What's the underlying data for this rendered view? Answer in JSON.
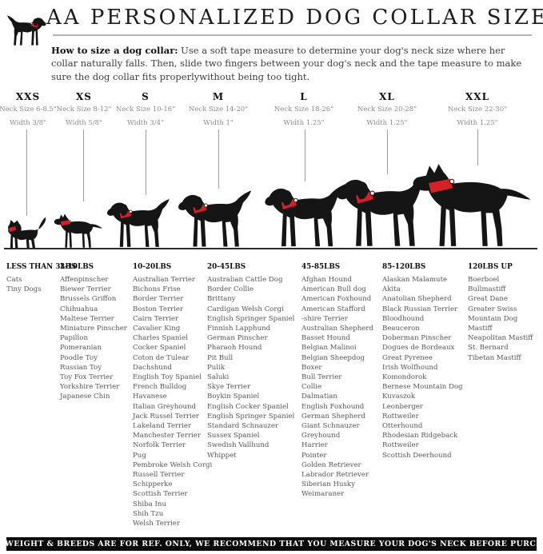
{
  "header": {
    "title": "AA PERSONALIZED DOG COLLAR SIZE GUIDE"
  },
  "intro": {
    "lead": "How to size a dog collar:",
    "body": "Use a soft tape measure to determine your dog's neck size where her collar naturally falls. Then, slide two fingers between your dog's neck and the tape measure to make sure the dog collar fits properlywithout being too tight."
  },
  "sizes": [
    {
      "name": "XXS",
      "neck": "Neck Size 6-8.5\"",
      "width": "Width 3/8\""
    },
    {
      "name": "XS",
      "neck": "Neck Size 8-12\"",
      "width": "Width 5/8\""
    },
    {
      "name": "S",
      "neck": "Neck Size 10-16\"",
      "width": "Width 3/4\""
    },
    {
      "name": "M",
      "neck": "Neck Size 14-20\"",
      "width": "Width 1\""
    },
    {
      "name": "L",
      "neck": "Neck Size 18-26\"",
      "width": "Width 1.25\""
    },
    {
      "name": "XL",
      "neck": "Neck Size 20-28\"",
      "width": "Width 1.25\""
    },
    {
      "name": "XXL",
      "neck": "Neck Size 22-30\"",
      "width": "Width 1.25\""
    }
  ],
  "weight_groups": [
    {
      "label": "LESS THAN 3LBS",
      "breeds": [
        "Cats",
        "Tiny Dogs"
      ]
    },
    {
      "label": "3-10LBS",
      "breeds": [
        "Affenpinscher",
        "Biewer Terrier",
        "Brussels Griffon",
        "Chihuahua",
        "Maltese Terrier",
        "Miniature Pinscher",
        "Papillon",
        "Pomeranian",
        "Poodle Toy",
        "Russian Toy",
        "Toy Fox Terrier",
        "Yorkshire Terrier",
        "Japanese Chin"
      ]
    },
    {
      "label": "10-20LBS",
      "breeds": [
        "Australian Terrier",
        "Bichons Frise",
        "Border Terrier",
        "Boston Terrier",
        "Cairn Terrier",
        "Cavalier King",
        "Charles Spaniel",
        "Cocker Spaniel",
        "Coton de Tulear",
        "Dachshund",
        "English Toy Spaniel",
        "French Bulldog",
        "Havanese",
        "Italian Greyhound",
        "Jack Russel Terrier",
        "Lakeland Terrier",
        "Manchester Terrier",
        "Norfolk Terrier",
        "Pug",
        "Pembroke Welsh Corgi",
        "Russell Terrier",
        "Schipperke",
        "Scottish Terrier",
        "Shiba Inu",
        "Shih Tzu",
        "Welsh Terrier"
      ]
    },
    {
      "label": "20-45LBS",
      "breeds": [
        "Australian Cattle Dog",
        "Border Collie",
        "Brittany",
        "Cardigan Welsh Corgi",
        "English Springer Spaniel",
        "Finnish Lapphund",
        "German Pinscher",
        "Pharaoh Hound",
        "Pit Bull",
        "Pulik",
        "Saluki",
        "Skye Terrier",
        "Boykin Spaniel",
        "English Cocker Spaniel",
        "English Springer Spaniel",
        "Standard Schnauzer",
        "Sussex Spaniel",
        "Swedish Vallhund",
        "Whippet"
      ]
    },
    {
      "label": "45-85LBS",
      "breeds": [
        "Afghan Hound",
        "American Bull dog",
        "American Foxhound",
        "American Stafford",
        "-shire Terrier",
        "Australian Shepherd",
        "Basset Hound",
        "Belgian Malinoi",
        "Belgian Sheepdog",
        "Boxer",
        "Bull Terrier",
        "Collie",
        "Dalmatian",
        "English Foxhound",
        "German Shepherd",
        "Giant Schnauzer",
        "Greyhound",
        "Harrier",
        "Pointer",
        "Golden Retriever",
        "Labrador Retriever",
        "Siberian Husky",
        "Weimaraner"
      ]
    },
    {
      "label": "85-120LBS",
      "breeds": [
        "Alaskan Malamute",
        "Akita",
        "Anatolian Shepherd",
        "Black Russian Terrier",
        "Bloodhound",
        "Beauceron",
        "Doberman Pinscher",
        "Dogues de Bordeaux",
        "Great Pyrenee",
        "Irish Wolfhound",
        "Komondorok",
        "Bernese Mountain Dog",
        "Kuvaszok",
        "Leonberger",
        "Rottweiler",
        "Otterhound",
        "Rhodesian Ridgeback",
        "Rottweiler",
        "Scottish Deerhound"
      ]
    },
    {
      "label": "120LBS UP",
      "breeds": [
        "Boerboel",
        "Bullmastiff",
        "Great Dane",
        "Greater Swiss",
        "Mountain Dog",
        "Mastiff",
        "Neapolitan Mastiff",
        "St. Bernard",
        "Tibetan Mastiff"
      ]
    }
  ],
  "footer": {
    "text": "DOG WEIGHT & BREEDS ARE FOR REF. ONLY, WE RECOMMEND THAT YOU MEASURE YOUR DOG'S NECK BEFORE PURCHASE"
  },
  "colors": {
    "collar_red": "#d42127",
    "silhouette_black": "#151515",
    "footer_bg": "#0c0c0c"
  }
}
